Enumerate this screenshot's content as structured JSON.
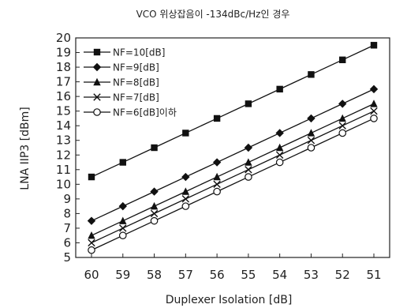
{
  "chart_data": {
    "type": "line",
    "title": "VCO 위상잡음이 -134dBc/Hz인 경우",
    "xlabel": "Duplexer Isolation [dB]",
    "ylabel": "LNA IIP3 [dBm]",
    "x": [
      60,
      59,
      58,
      57,
      56,
      55,
      54,
      53,
      52,
      51
    ],
    "x_reversed": true,
    "ylim": [
      5,
      20
    ],
    "yticks": [
      5,
      6,
      7,
      8,
      9,
      10,
      11,
      12,
      13,
      14,
      15,
      16,
      17,
      18,
      19,
      20
    ],
    "grid": false,
    "legend_position": "top-left",
    "series": [
      {
        "name": "NF=10[dB]",
        "marker": "square",
        "values": [
          10.5,
          11.5,
          12.5,
          13.5,
          14.5,
          15.5,
          16.5,
          17.5,
          18.5,
          19.5
        ]
      },
      {
        "name": "NF=9[dB]",
        "marker": "diamond",
        "values": [
          7.5,
          8.5,
          9.5,
          10.5,
          11.5,
          12.5,
          13.5,
          14.5,
          15.5,
          16.5
        ]
      },
      {
        "name": "NF=8[dB]",
        "marker": "triangle",
        "values": [
          6.5,
          7.5,
          8.5,
          9.5,
          10.5,
          11.5,
          12.5,
          13.5,
          14.5,
          15.5
        ]
      },
      {
        "name": "NF=7[dB]",
        "marker": "cross",
        "values": [
          6.0,
          7.0,
          8.0,
          9.0,
          10.0,
          11.0,
          12.0,
          13.0,
          14.0,
          15.0
        ]
      },
      {
        "name": "NF=6[dB]이하",
        "marker": "circle",
        "values": [
          5.5,
          6.5,
          7.5,
          8.5,
          9.5,
          10.5,
          11.5,
          12.5,
          13.5,
          14.5
        ]
      }
    ]
  }
}
